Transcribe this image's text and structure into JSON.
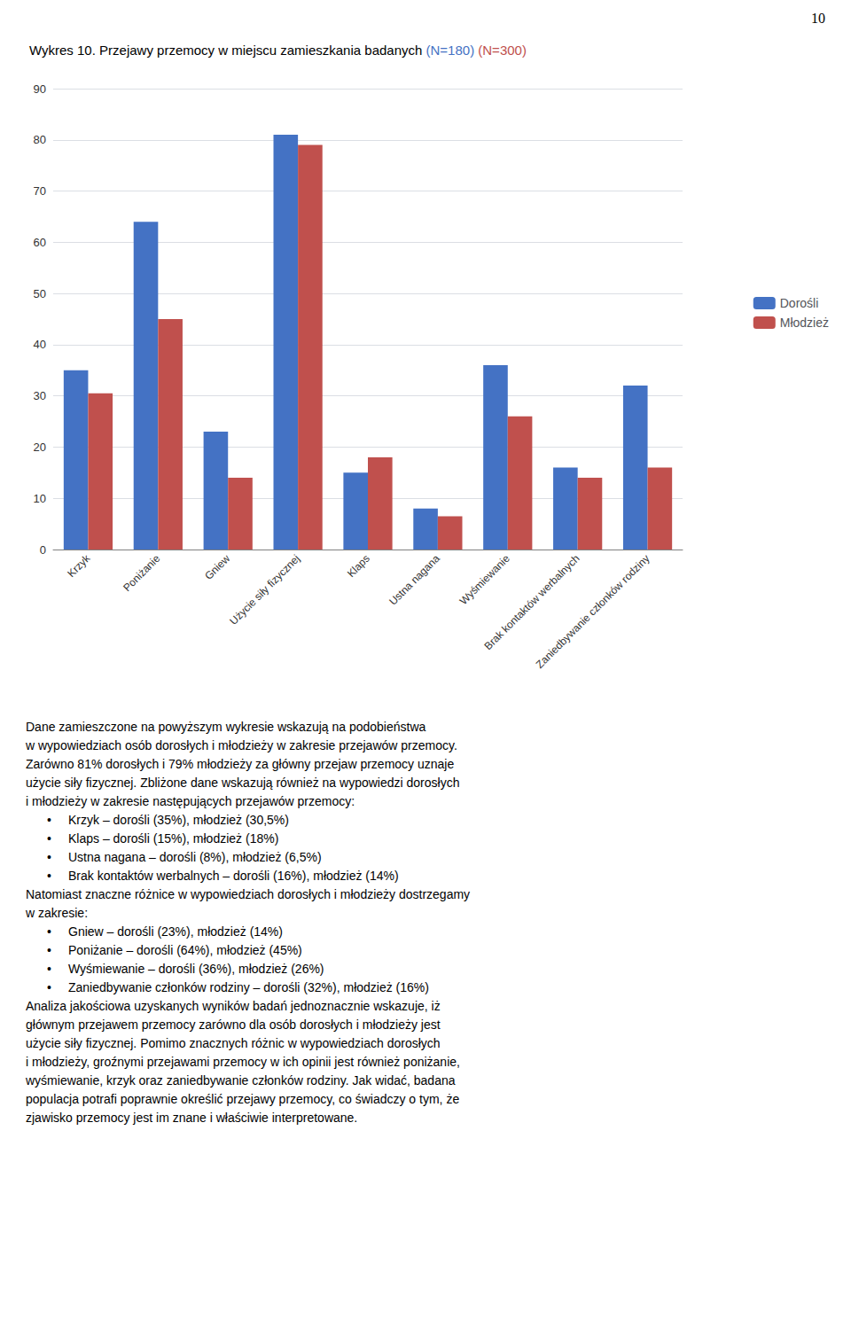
{
  "chart_data": {
    "type": "bar",
    "title": "Wykres 10. Przejawy przemocy w miejscu zamieszkania badanych (N=180) (N=300)",
    "page_number": "10",
    "categories": [
      "Krzyk",
      "Poniżanie",
      "Gniew",
      "Użycie siły fizycznej",
      "Klaps",
      "Ustna nagana",
      "Wyśmiewanie",
      "Brak kontaktów werbalnych",
      "Zaniedbywanie członków rodziny"
    ],
    "series": [
      {
        "name": "Dorośli",
        "color": "#4472C4",
        "values": [
          35,
          64,
          23,
          81,
          15,
          8,
          36,
          16,
          32
        ]
      },
      {
        "name": "Młodzież",
        "color": "#C0504D",
        "values": [
          30.5,
          45,
          14,
          79,
          18,
          6.5,
          26,
          14,
          16
        ]
      }
    ],
    "ylim": [
      0,
      90
    ],
    "yticks": [
      0,
      10,
      20,
      30,
      40,
      50,
      60,
      70,
      80,
      90
    ],
    "grid": true,
    "legend": "right",
    "annotations": [
      "Dane zamieszczone na powyższym wykresie wskazują na podobieństwa",
      "w wypowiedziach osób dorosłych i młodzieży w zakresie przejawów przemocy.",
      "Zarówno 81% dorosłych i 79% młodzieży za główny przejaw przemocy uznaje",
      "użycie siły fizycznej. Zbliżone dane wskazują również na wypowiedzi dorosłych",
      "i młodzieży w zakresie następujących przejawów przemocy:",
      "• Krzyk – dorośli (35%), młodzież (30,5%)",
      "• Klaps – dorośli (15%), młodzież (18%)",
      "• Ustna nagana – dorośli (8%), młodzież (6,5%)",
      "• Brak kontaktów werbalnych – dorośli (16%), młodzież (14%)",
      "Natomiast znaczne różnice w wypowiedziach dorosłych i młodzieży dostrzegamy",
      "w zakresie:",
      "• Gniew – dorośli (23%), młodzież (14%)",
      "• Poniżanie – dorośli (64%), młodzież (45%)",
      "• Wyśmiewanie – dorośli (36%), młodzież (26%)",
      "• Zaniedbywanie członków rodziny – dorośli (32%), młodzież (16%)",
      "Analiza jakościowa uzyskanych wyników badań jednoznacznie wskazuje, iż",
      "głównym przejawem przemocy zarówno dla osób dorosłych i młodzieży jest",
      "użycie siły fizycznej. Pomimo znacznych różnic w wypowiedziach dorosłych",
      "i młodzieży, groźnymi przejawami przemocy w ich opinii jest również poniżanie,",
      "wyśmiewanie, krzyk oraz zaniedbywanie członków rodziny. Jak widać, badana",
      "populacja potrafi poprawnie określić przejawy przemocy, co świadczy o tym, że",
      "zjawisko przemocy jest im znane i właściwie interpretowane."
    ]
  }
}
